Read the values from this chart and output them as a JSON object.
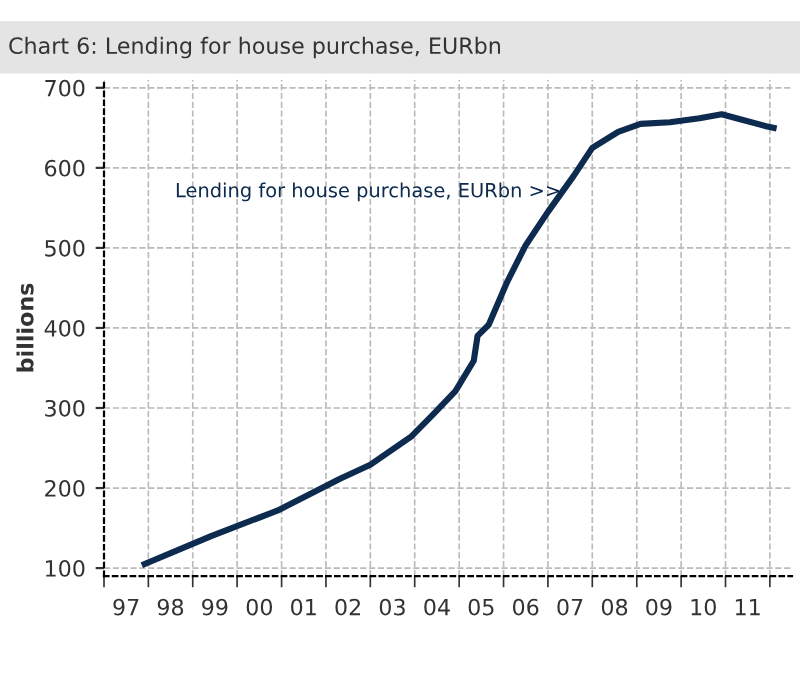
{
  "chart_data": {
    "type": "line",
    "title": "Chart 6: Lending for house purchase, EURbn",
    "ylabel": "billions",
    "x": [
      "1997-12",
      "1999-06",
      "2000-12",
      "2002-05",
      "2003-01",
      "2003-12",
      "2004-06",
      "2004-12",
      "2005-05",
      "2005-06",
      "2005-09",
      "2006-02",
      "2006-07",
      "2007-01",
      "2007-08",
      "2008-01",
      "2008-08",
      "2009-02",
      "2009-10",
      "2010-06",
      "2010-12",
      "2011-04",
      "2011-12",
      "2012-02"
    ],
    "series": [
      {
        "name": "Lending for house purchase, EURbn >>",
        "color": "#0d2a4f",
        "values": [
          105,
          140,
          172,
          212,
          229,
          264,
          292,
          321,
          359,
          390,
          404,
          458,
          503,
          545,
          590,
          625,
          645,
          655,
          657,
          662,
          667,
          662,
          652,
          650
        ]
      }
    ],
    "xlim": [
      "1997-01",
      "2012-07"
    ],
    "ylim": [
      90,
      710
    ],
    "xticks": [
      {
        "value": "1997-01-01",
        "label": null
      },
      {
        "value": "1997-07-02",
        "label": "97"
      },
      {
        "value": "1998-01-01",
        "label": null
      },
      {
        "value": "1998-07-02",
        "label": "98"
      },
      {
        "value": "1999-01-01",
        "label": null
      },
      {
        "value": "1999-07-02",
        "label": "99"
      },
      {
        "value": "2000-01-01",
        "label": null
      },
      {
        "value": "2000-07-02",
        "label": "00"
      },
      {
        "value": "2001-01-01",
        "label": null
      },
      {
        "value": "2001-07-02",
        "label": "01"
      },
      {
        "value": "2002-01-01",
        "label": null
      },
      {
        "value": "2002-07-02",
        "label": "02"
      },
      {
        "value": "2003-01-01",
        "label": null
      },
      {
        "value": "2003-07-02",
        "label": "03"
      },
      {
        "value": "2004-01-01",
        "label": null
      },
      {
        "value": "2004-07-02",
        "label": "04"
      },
      {
        "value": "2005-01-01",
        "label": null
      },
      {
        "value": "2005-07-02",
        "label": "05"
      },
      {
        "value": "2006-01-01",
        "label": null
      },
      {
        "value": "2006-07-02",
        "label": "06"
      },
      {
        "value": "2007-01-01",
        "label": null
      },
      {
        "value": "2007-07-02",
        "label": "07"
      },
      {
        "value": "2008-01-01",
        "label": null
      },
      {
        "value": "2008-07-02",
        "label": "08"
      },
      {
        "value": "2009-01-01",
        "label": null
      },
      {
        "value": "2009-07-02",
        "label": "09"
      },
      {
        "value": "2010-01-01",
        "label": null
      },
      {
        "value": "2010-07-02",
        "label": "10"
      },
      {
        "value": "2011-01-01",
        "label": null
      },
      {
        "value": "2011-07-02",
        "label": "11"
      },
      {
        "value": "2012-01-01",
        "label": null
      }
    ],
    "yticks": [
      100,
      200,
      300,
      400,
      500,
      600,
      700
    ],
    "grid": true,
    "legend": false,
    "line_style": "solid",
    "marker": "none"
  }
}
